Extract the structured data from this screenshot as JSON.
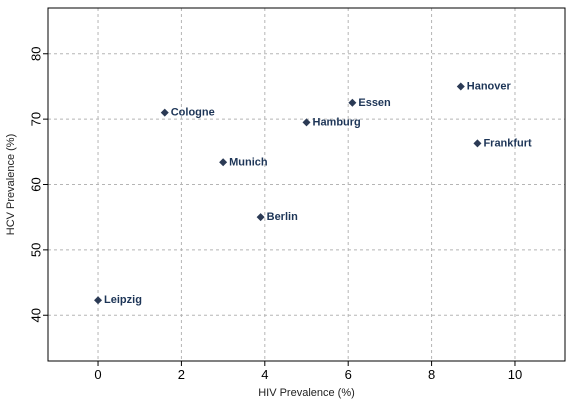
{
  "chart_data": {
    "type": "scatter",
    "title": "",
    "xlabel": "HIV Prevalence (%)",
    "ylabel": "HCV Prevalence (%)",
    "xlim": [
      -1.2,
      11.2
    ],
    "ylim": [
      33,
      87
    ],
    "xticks": [
      0,
      2,
      4,
      6,
      8,
      10
    ],
    "yticks": [
      40,
      50,
      60,
      70,
      80
    ],
    "grid": true,
    "legend": "none",
    "marker": "diamond",
    "marker_color": "#2b3a55",
    "label_color": "#1d3557",
    "points": [
      {
        "label": "Leipzig",
        "x": 0.0,
        "y": 42.3
      },
      {
        "label": "Cologne",
        "x": 1.6,
        "y": 71.0
      },
      {
        "label": "Munich",
        "x": 3.0,
        "y": 63.4
      },
      {
        "label": "Berlin",
        "x": 3.9,
        "y": 55.0
      },
      {
        "label": "Hamburg",
        "x": 5.0,
        "y": 69.5
      },
      {
        "label": "Essen",
        "x": 6.1,
        "y": 72.5
      },
      {
        "label": "Hanover",
        "x": 8.7,
        "y": 75.0
      },
      {
        "label": "Frankfurt",
        "x": 9.1,
        "y": 66.3
      }
    ]
  }
}
